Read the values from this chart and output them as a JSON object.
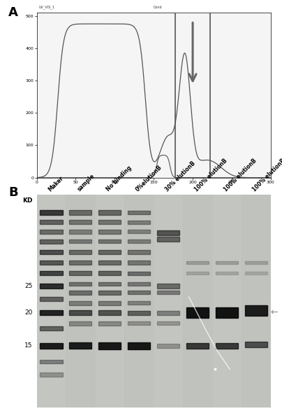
{
  "panel_A_label": "A",
  "panel_B_label": "B",
  "fig_bg": "#ffffff",
  "panel_A": {
    "line_color": "#555555",
    "arrow_color": "#666666",
    "box_color": "#555555"
  },
  "panel_B": {
    "lane_labels": [
      "Maker",
      "sample",
      "No binding",
      "0%elutionB",
      "30% elutionB",
      "100% elutionB",
      "100% elutionB",
      "100% elutionB"
    ],
    "kd_label": "KD",
    "mw_marks": [
      "25",
      "20",
      "15"
    ],
    "arrow_color": "#888888"
  }
}
